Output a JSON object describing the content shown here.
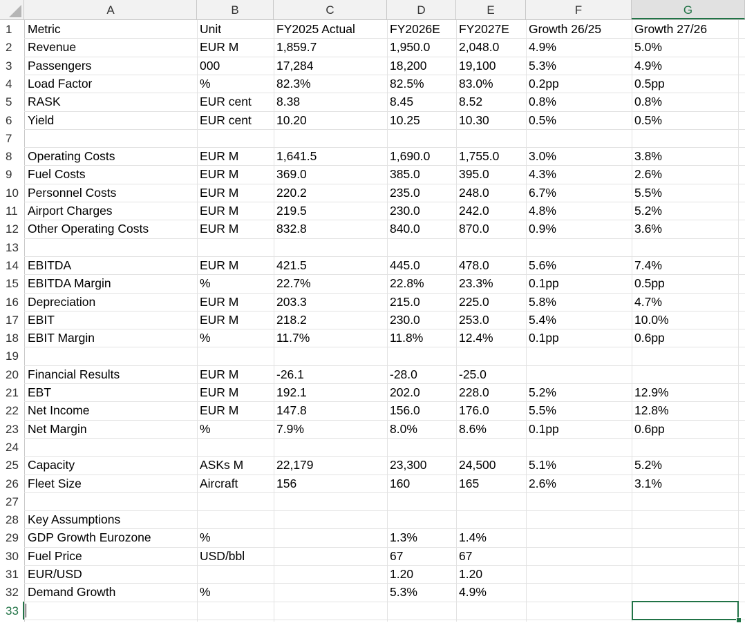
{
  "columns": [
    "A",
    "B",
    "C",
    "D",
    "E",
    "F",
    "G"
  ],
  "selected_column": "G",
  "selected_row": "33",
  "rows": [
    {
      "n": "1",
      "cells": [
        "Metric",
        "Unit",
        "FY2025 Actual",
        "FY2026E",
        "FY2027E",
        "Growth 26/25",
        "Growth 27/26"
      ]
    },
    {
      "n": "2",
      "cells": [
        "Revenue",
        "EUR M",
        "1,859.7",
        "1,950.0",
        "2,048.0",
        "4.9%",
        "5.0%"
      ]
    },
    {
      "n": "3",
      "cells": [
        "Passengers",
        "000",
        "17,284",
        "18,200",
        "19,100",
        "5.3%",
        "4.9%"
      ]
    },
    {
      "n": "4",
      "cells": [
        "Load Factor",
        "%",
        "82.3%",
        "82.5%",
        "83.0%",
        "0.2pp",
        "0.5pp"
      ]
    },
    {
      "n": "5",
      "cells": [
        "RASK",
        "EUR cent",
        "8.38",
        "8.45",
        "8.52",
        "0.8%",
        "0.8%"
      ]
    },
    {
      "n": "6",
      "cells": [
        "Yield",
        "EUR cent",
        "10.20",
        "10.25",
        "10.30",
        "0.5%",
        "0.5%"
      ]
    },
    {
      "n": "7",
      "cells": [
        "",
        "",
        "",
        "",
        "",
        "",
        ""
      ]
    },
    {
      "n": "8",
      "cells": [
        "Operating Costs",
        "EUR M",
        "1,641.5",
        "1,690.0",
        "1,755.0",
        "3.0%",
        "3.8%"
      ]
    },
    {
      "n": "9",
      "cells": [
        "Fuel Costs",
        "EUR M",
        "369.0",
        "385.0",
        "395.0",
        "4.3%",
        "2.6%"
      ]
    },
    {
      "n": "10",
      "cells": [
        "Personnel Costs",
        "EUR M",
        "220.2",
        "235.0",
        "248.0",
        "6.7%",
        "5.5%"
      ]
    },
    {
      "n": "11",
      "cells": [
        "Airport Charges",
        "EUR M",
        "219.5",
        "230.0",
        "242.0",
        "4.8%",
        "5.2%"
      ]
    },
    {
      "n": "12",
      "cells": [
        "Other Operating Costs",
        "EUR M",
        "832.8",
        "840.0",
        "870.0",
        "0.9%",
        "3.6%"
      ]
    },
    {
      "n": "13",
      "cells": [
        "",
        "",
        "",
        "",
        "",
        "",
        ""
      ]
    },
    {
      "n": "14",
      "cells": [
        "EBITDA",
        "EUR M",
        "421.5",
        "445.0",
        "478.0",
        "5.6%",
        "7.4%"
      ]
    },
    {
      "n": "15",
      "cells": [
        "EBITDA Margin",
        "%",
        "22.7%",
        "22.8%",
        "23.3%",
        "0.1pp",
        "0.5pp"
      ]
    },
    {
      "n": "16",
      "cells": [
        "Depreciation",
        "EUR M",
        "203.3",
        "215.0",
        "225.0",
        "5.8%",
        "4.7%"
      ]
    },
    {
      "n": "17",
      "cells": [
        "EBIT",
        "EUR M",
        "218.2",
        "230.0",
        "253.0",
        "5.4%",
        "10.0%"
      ]
    },
    {
      "n": "18",
      "cells": [
        "EBIT Margin",
        "%",
        "11.7%",
        "11.8%",
        "12.4%",
        "0.1pp",
        "0.6pp"
      ]
    },
    {
      "n": "19",
      "cells": [
        "",
        "",
        "",
        "",
        "",
        "",
        ""
      ]
    },
    {
      "n": "20",
      "cells": [
        "Financial Results",
        "EUR M",
        "-26.1",
        "-28.0",
        "-25.0",
        "",
        ""
      ]
    },
    {
      "n": "21",
      "cells": [
        "EBT",
        "EUR M",
        "192.1",
        "202.0",
        "228.0",
        "5.2%",
        "12.9%"
      ]
    },
    {
      "n": "22",
      "cells": [
        "Net Income",
        "EUR M",
        "147.8",
        "156.0",
        "176.0",
        "5.5%",
        "12.8%"
      ]
    },
    {
      "n": "23",
      "cells": [
        "Net Margin",
        "%",
        "7.9%",
        "8.0%",
        "8.6%",
        "0.1pp",
        "0.6pp"
      ]
    },
    {
      "n": "24",
      "cells": [
        "",
        "",
        "",
        "",
        "",
        "",
        ""
      ]
    },
    {
      "n": "25",
      "cells": [
        "Capacity",
        "ASKs M",
        "22,179",
        "23,300",
        "24,500",
        "5.1%",
        "5.2%"
      ]
    },
    {
      "n": "26",
      "cells": [
        "Fleet Size",
        "Aircraft",
        "156",
        "160",
        "165",
        "2.6%",
        "3.1%"
      ]
    },
    {
      "n": "27",
      "cells": [
        "",
        "",
        "",
        "",
        "",
        "",
        ""
      ]
    },
    {
      "n": "28",
      "cells": [
        "Key Assumptions",
        "",
        "",
        "",
        "",
        "",
        ""
      ]
    },
    {
      "n": "29",
      "cells": [
        "GDP Growth Eurozone",
        "%",
        "",
        "1.3%",
        "1.4%",
        "",
        ""
      ]
    },
    {
      "n": "30",
      "cells": [
        "Fuel Price",
        "USD/bbl",
        "",
        "67",
        "67",
        "",
        ""
      ]
    },
    {
      "n": "31",
      "cells": [
        "EUR/USD",
        "",
        "",
        "1.20",
        "1.20",
        "",
        ""
      ]
    },
    {
      "n": "32",
      "cells": [
        "Demand Growth",
        "%",
        "",
        "5.3%",
        "4.9%",
        "",
        ""
      ]
    },
    {
      "n": "33",
      "cells": [
        "",
        "",
        "",
        "",
        "",
        "",
        ""
      ]
    }
  ],
  "colors": {
    "accent": "#217346",
    "grid": "#e2e2e2",
    "header_bg": "#f2f2f2"
  }
}
